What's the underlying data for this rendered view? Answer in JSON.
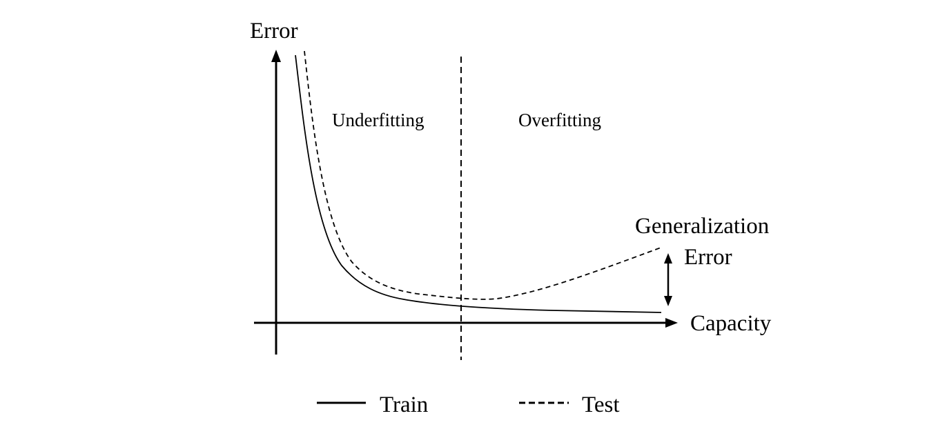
{
  "diagram": {
    "y_axis_label": "Error",
    "x_axis_label": "Capacity",
    "regions": {
      "left": "Underfitting",
      "right": "Overfitting"
    },
    "gap_annotation": {
      "line1": "Generalization",
      "line2": "Error"
    },
    "legend": {
      "train": "Train",
      "test": "Test"
    }
  }
}
